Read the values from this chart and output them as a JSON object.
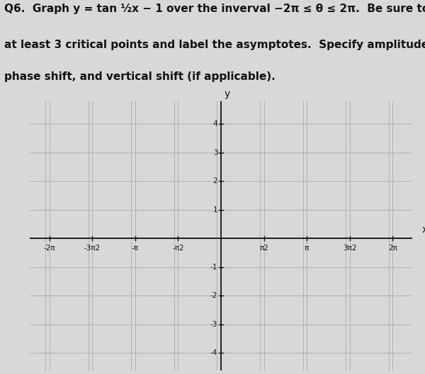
{
  "title_line1": "Q6.  Graph y = tan ½x − 1 over the inverval −2π ≤ θ ≤ 2π.  Be sure to lable",
  "title_line2": "at least 3 critical points and label the asymptotes.  Specify amplitude, period,",
  "title_line3": "phase shift, and vertical shift (if applicable).",
  "xlim": [
    -7.0,
    7.0
  ],
  "ylim": [
    -4.6,
    4.8
  ],
  "yticks": [
    -4,
    -3,
    -2,
    -1,
    1,
    2,
    3,
    4
  ],
  "xtick_vals": [
    -6.283185307,
    -4.71238898,
    -3.141592654,
    -1.570796327,
    1.570796327,
    3.141592654,
    4.71238898,
    6.283185307
  ],
  "xtick_labels": [
    "-2π",
    "-3π2",
    "-π",
    "-π2",
    "π2",
    "π",
    "3π2",
    "2π"
  ],
  "grid_color": "#b0b0b0",
  "axis_color": "#111111",
  "plot_bg": "#e8e8e8",
  "fig_bg": "#d8d8d8",
  "text_color": "#111111",
  "pi": 3.141592653589793,
  "title_fontsize": 11.0,
  "tick_fontsize": 7.5,
  "axis_label_fontsize": 10
}
